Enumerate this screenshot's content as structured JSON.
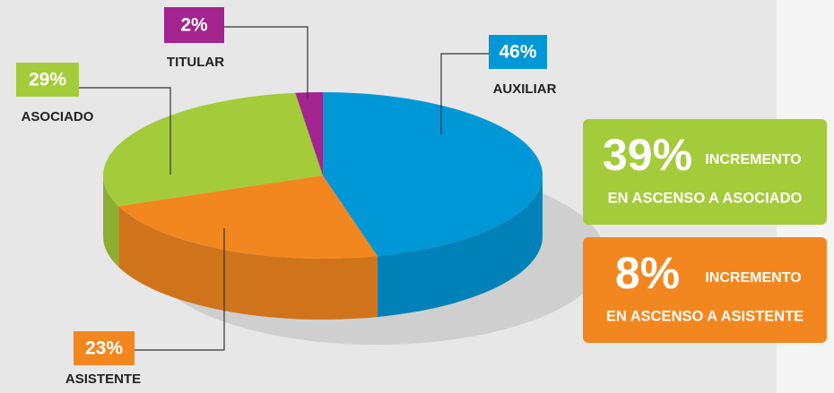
{
  "chart_data": {
    "type": "pie3d",
    "categories": [
      "AUXILIAR",
      "ASISTENTE",
      "ASOCIADO",
      "TITULAR"
    ],
    "values": [
      46,
      23,
      29,
      2
    ],
    "value_labels": [
      "46%",
      "23%",
      "29%",
      "2%"
    ],
    "colors": [
      "#0097d7",
      "#f2871f",
      "#a4cb3a",
      "#a3248f"
    ],
    "annotations": [
      {
        "value": "39%",
        "text": "INCREMENTO",
        "subtext": "EN ASCENSO A ASOCIADO",
        "color": "#a4cb3a"
      },
      {
        "value": "8%",
        "text": "INCREMENTO",
        "subtext": "EN ASCENSO A ASISTENTE",
        "color": "#f2871f"
      }
    ]
  }
}
